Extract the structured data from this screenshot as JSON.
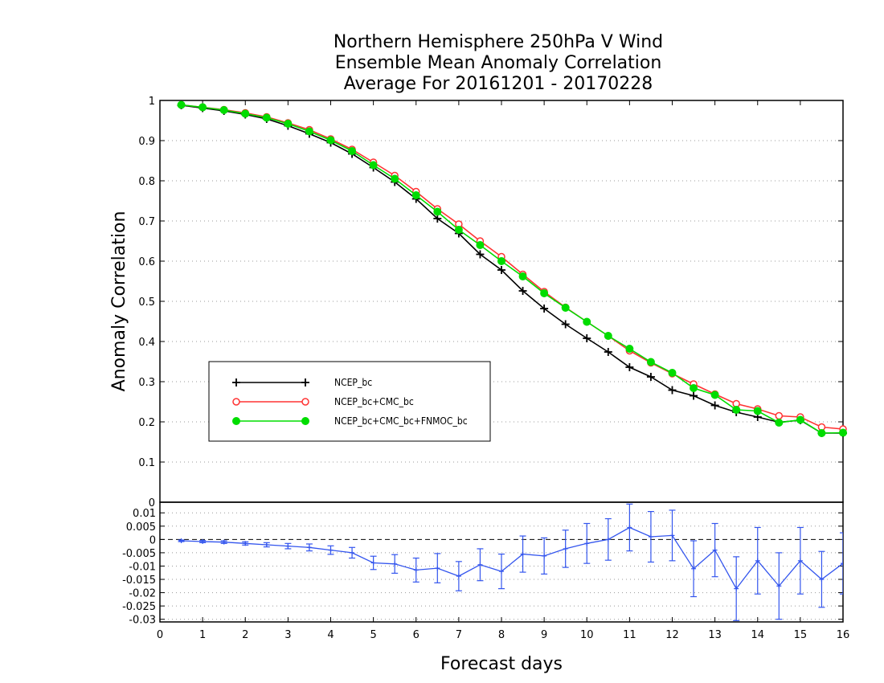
{
  "chart_data": [
    {
      "type": "line",
      "title_lines": [
        "Northern Hemisphere 250hPa V Wind",
        "Ensemble Mean Anomaly Correlation",
        "Average For 20161201 - 20170228"
      ],
      "ylabel": "Anomaly Correlation",
      "ylim": [
        0,
        1
      ],
      "yticks": [
        "1",
        "0.9",
        "0.8",
        "0.7",
        "0.6",
        "0.5",
        "0.4",
        "0.3",
        "0.2",
        "0.1",
        "0"
      ],
      "grid": "horizontal dotted",
      "legend_position": "center-left",
      "x": [
        0.5,
        1,
        1.5,
        2,
        2.5,
        3,
        3.5,
        4,
        4.5,
        5,
        5.5,
        6,
        6.5,
        7,
        7.5,
        8,
        8.5,
        9,
        9.5,
        10,
        10.5,
        11,
        11.5,
        12,
        12.5,
        13,
        13.5,
        14,
        14.5,
        15,
        15.5,
        16
      ],
      "series": [
        {
          "name": "NCEP_bc",
          "color": "#000000",
          "marker": "plus",
          "values": [
            0.988,
            0.981,
            0.974,
            0.965,
            0.954,
            0.937,
            0.917,
            0.895,
            0.867,
            0.833,
            0.797,
            0.755,
            0.706,
            0.669,
            0.617,
            0.578,
            0.526,
            0.482,
            0.443,
            0.408,
            0.374,
            0.336,
            0.312,
            0.279,
            0.265,
            0.241,
            0.224,
            0.212,
            0.199,
            0.204,
            0.172,
            0.172
          ]
        },
        {
          "name": "NCEP_bc+CMC_bc",
          "color": "#ff3333",
          "marker": "open-circle",
          "values": [
            0.989,
            0.983,
            0.977,
            0.969,
            0.959,
            0.944,
            0.927,
            0.904,
            0.878,
            0.846,
            0.813,
            0.773,
            0.73,
            0.692,
            0.65,
            0.611,
            0.567,
            0.524,
            0.485,
            0.449,
            0.414,
            0.377,
            0.347,
            0.32,
            0.294,
            0.269,
            0.245,
            0.232,
            0.215,
            0.212,
            0.187,
            0.182
          ]
        },
        {
          "name": "NCEP_bc+CMC_bc+FNMOC_bc",
          "color": "#00dd00",
          "marker": "filled-circle",
          "values": [
            0.989,
            0.983,
            0.976,
            0.967,
            0.957,
            0.942,
            0.923,
            0.901,
            0.874,
            0.839,
            0.805,
            0.764,
            0.723,
            0.678,
            0.64,
            0.6,
            0.562,
            0.52,
            0.484,
            0.449,
            0.414,
            0.382,
            0.349,
            0.322,
            0.284,
            0.267,
            0.23,
            0.227,
            0.198,
            0.205,
            0.172,
            0.173
          ]
        }
      ]
    },
    {
      "type": "line",
      "xlabel": "Forecast days",
      "xlim": [
        0,
        16
      ],
      "xticks": [
        "0",
        "1",
        "2",
        "3",
        "4",
        "5",
        "6",
        "7",
        "8",
        "9",
        "10",
        "11",
        "12",
        "13",
        "14",
        "15",
        "16"
      ],
      "ylim": [
        -0.031,
        0.014
      ],
      "yticks": [
        "0.01",
        "0.005",
        "0",
        "-0.005",
        "-0.01",
        "-0.015",
        "-0.02",
        "-0.025",
        "-0.03"
      ],
      "zero_line": "dashed",
      "color": "#3355ee",
      "x": [
        0.5,
        1,
        1.5,
        2,
        2.5,
        3,
        3.5,
        4,
        4.5,
        5,
        5.5,
        6,
        6.5,
        7,
        7.5,
        8,
        8.5,
        9,
        9.5,
        10,
        10.5,
        11,
        11.5,
        12,
        12.5,
        13,
        13.5,
        14,
        14.5,
        15,
        15.5,
        16
      ],
      "values": [
        -0.0005,
        -0.0008,
        -0.001,
        -0.0015,
        -0.002,
        -0.0025,
        -0.003,
        -0.004,
        -0.005,
        -0.0088,
        -0.0092,
        -0.0115,
        -0.0108,
        -0.0138,
        -0.0095,
        -0.012,
        -0.0055,
        -0.0062,
        -0.0035,
        -0.0015,
        0.0,
        0.0045,
        0.001,
        0.0015,
        -0.011,
        -0.004,
        -0.0185,
        -0.008,
        -0.0175,
        -0.008,
        -0.015,
        -0.009
      ],
      "error": [
        0.0003,
        0.0004,
        0.0005,
        0.0006,
        0.0008,
        0.001,
        0.0013,
        0.0016,
        0.002,
        0.0025,
        0.0035,
        0.0045,
        0.0055,
        0.0055,
        0.006,
        0.0065,
        0.0068,
        0.0068,
        0.007,
        0.0075,
        0.0078,
        0.0088,
        0.0095,
        0.0095,
        0.0105,
        0.01,
        0.012,
        0.0125,
        0.0125,
        0.0125,
        0.0105,
        0.0115
      ]
    }
  ]
}
